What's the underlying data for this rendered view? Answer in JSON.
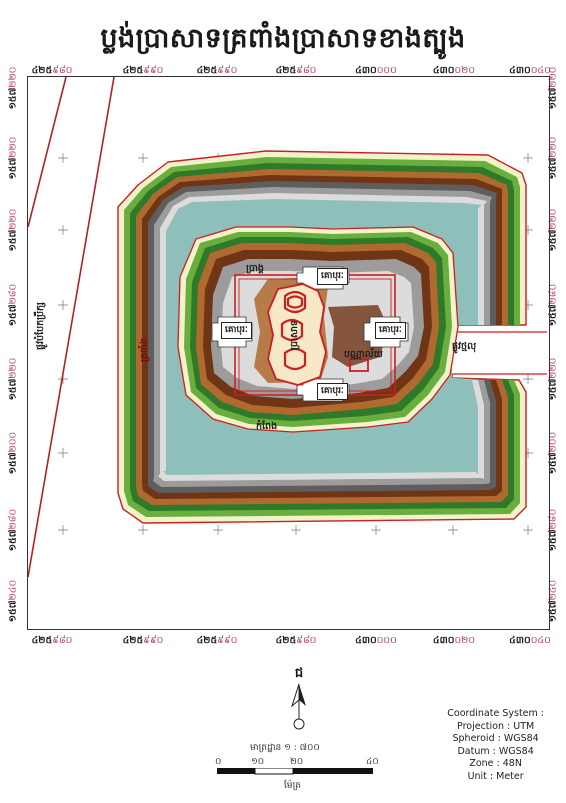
{
  "title": "ប្លង់ប្រាសាទគ្រពាំងប្រាសាទខាងត្បូង",
  "grid": {
    "x_labels": [
      {
        "major": "៤២៥",
        "minor": "៩៨០"
      },
      {
        "major": "៤២៥",
        "minor": "៩៩០"
      },
      {
        "major": "៤២៥",
        "minor": "៩៩០"
      },
      {
        "major": "៤២៥",
        "minor": "៩៨០"
      },
      {
        "major": "៤៣០",
        "minor": "០០០"
      },
      {
        "major": "៤៣០",
        "minor": "០២០"
      },
      {
        "major": "៤៣០",
        "minor": "០៤០"
      }
    ],
    "x_labels_bottom": [
      {
        "major": "៤២៥",
        "minor": "៩៨០"
      },
      {
        "major": "៤២៥",
        "minor": "៩៩០"
      },
      {
        "major": "៤២៥",
        "minor": "៩៩០"
      },
      {
        "major": "៤២៥",
        "minor": "៩៨០"
      },
      {
        "major": "៤៣០",
        "minor": "០០០"
      },
      {
        "major": "៤៣០",
        "minor": "០២០"
      },
      {
        "major": "៤៣០",
        "minor": "០៤០"
      }
    ],
    "y_labels": [
      {
        "major": "១៥៧",
        "minor": "២២០"
      },
      {
        "major": "១៥៧",
        "minor": "២២០"
      },
      {
        "major": "១៥៧",
        "minor": "២២០"
      },
      {
        "major": "១៥៧",
        "minor": "២៨០"
      },
      {
        "major": "១៥៧",
        "minor": "២២០"
      },
      {
        "major": "១៥៧",
        "minor": "២០០"
      },
      {
        "major": "១៥៧",
        "minor": "២៨០"
      },
      {
        "major": "១៥៧",
        "minor": "២៤០"
      }
    ]
  },
  "labels": {
    "road_left": "ផ្លូវបំបែកប្រឹក្ស",
    "moat": "ត្រពាំង",
    "road_right": "ផ្លូវថ្មលុ",
    "tower_north": "ប្រាង្គ",
    "central_temple": "ប្រាសាទ",
    "library": "បណ្ណាល័យ",
    "south_wall": "កំពែង",
    "gate_north": "គោបុរៈ",
    "gate_south": "គោបុរៈ",
    "gate_west": "គោបុរៈ",
    "gate_east": "គោបុរៈ"
  },
  "north_arrow": "ជ",
  "scale": {
    "ratio": "មាត្រដ្ឋាន ១ : ៧០០",
    "ticks": [
      "០",
      "១០",
      "២០",
      "៤០"
    ],
    "unit": "ម៉ែត្រ"
  },
  "coordinate_system": {
    "heading": "Coordinate System :",
    "projection": "Projection : UTM",
    "spheroid": "Spheroid : WGS84",
    "datum": "Datum : WGS84",
    "zone": "Zone : 48N",
    "unit": "Unit : Meter"
  },
  "colors": {
    "water": "#8fbfbb",
    "outline": "#cc1f1f",
    "gray_light": "#dcdcdc",
    "gray_mid": "#9c9c9c",
    "gray_dark": "#5e5e5e",
    "brown_light": "#b06a30",
    "brown_dark": "#6f3515",
    "green_dark": "#2e7a2a",
    "green_mid": "#6aae3e",
    "cream": "#f1f3cc"
  }
}
